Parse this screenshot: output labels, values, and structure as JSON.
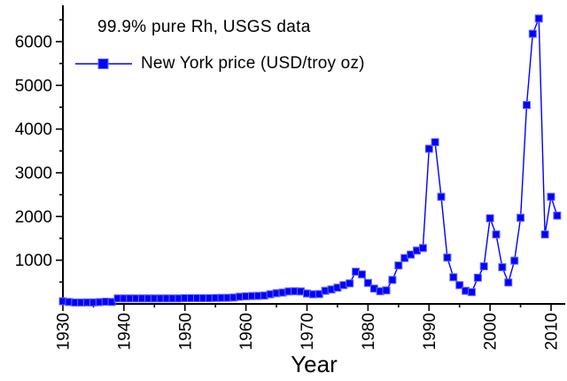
{
  "chart_data": {
    "type": "line",
    "title": "99.9% pure Rh, USGS data",
    "xlabel": "Year",
    "ylabel": "",
    "grid": false,
    "legend": {
      "label": "New York price (USD/troy oz)",
      "position": "top-left",
      "marker": "filled-square-on-line"
    },
    "x_range": [
      1930,
      2012
    ],
    "y_range": [
      0,
      6830
    ],
    "x_major_ticks": [
      1930,
      1940,
      1950,
      1960,
      1970,
      1980,
      1990,
      2000,
      2010
    ],
    "x_minor_ticks": [
      1935,
      1945,
      1955,
      1965,
      1975,
      1985,
      1995,
      2005
    ],
    "y_major_ticks": [
      1000,
      2000,
      3000,
      4000,
      5000,
      6000
    ],
    "y_minor_ticks": [
      500,
      1500,
      2500,
      3500,
      4500,
      5500,
      6500
    ],
    "series": [
      {
        "name": "New York price (USD/troy oz)",
        "color": "#0000ff",
        "marker": "filled-square",
        "x": [
          1930,
          1931,
          1932,
          1933,
          1934,
          1935,
          1936,
          1937,
          1938,
          1939,
          1940,
          1941,
          1942,
          1943,
          1944,
          1945,
          1946,
          1947,
          1948,
          1949,
          1950,
          1951,
          1952,
          1953,
          1954,
          1955,
          1956,
          1957,
          1958,
          1959,
          1960,
          1961,
          1962,
          1963,
          1964,
          1965,
          1966,
          1967,
          1968,
          1969,
          1970,
          1971,
          1972,
          1973,
          1974,
          1975,
          1976,
          1977,
          1978,
          1979,
          1980,
          1981,
          1982,
          1983,
          1984,
          1985,
          1986,
          1987,
          1988,
          1989,
          1990,
          1991,
          1992,
          1993,
          1994,
          1995,
          1996,
          1997,
          1998,
          1999,
          2000,
          2001,
          2002,
          2003,
          2004,
          2005,
          2006,
          2007,
          2008,
          2009,
          2010,
          2011
        ],
        "y": [
          60,
          45,
          32,
          32,
          35,
          35,
          40,
          50,
          45,
          125,
          125,
          125,
          125,
          125,
          125,
          125,
          125,
          125,
          125,
          125,
          132,
          132,
          132,
          132,
          132,
          135,
          138,
          140,
          145,
          165,
          175,
          180,
          185,
          190,
          220,
          245,
          260,
          285,
          290,
          285,
          240,
          220,
          225,
          300,
          330,
          370,
          430,
          470,
          735,
          675,
          480,
          350,
          290,
          310,
          550,
          880,
          1050,
          1130,
          1220,
          1280,
          3550,
          3700,
          2450,
          1060,
          610,
          430,
          300,
          270,
          600,
          860,
          1960,
          1590,
          840,
          490,
          990,
          1970,
          4550,
          6180,
          6530,
          1590,
          2450,
          2020
        ]
      }
    ]
  },
  "colors": {
    "series_blue": "#0000ff",
    "marker_edge": "#6666ff",
    "axis": "#000000",
    "text": "#000000",
    "background": "#ffffff"
  }
}
